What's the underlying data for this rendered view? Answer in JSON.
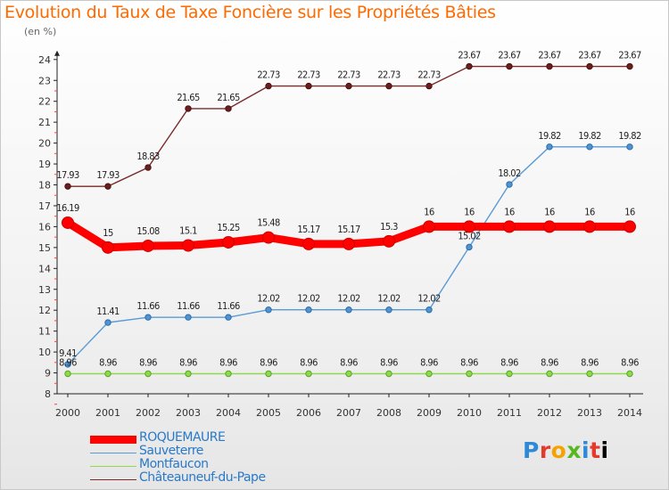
{
  "title": "Evolution du Taux de Taxe Foncière sur les Propriétés Bâties",
  "unit": "(en %)",
  "logo": [
    "P",
    "r",
    "o",
    "x",
    "i",
    "t",
    "i"
  ],
  "chart_data": {
    "type": "line",
    "x": [
      "2000",
      "2001",
      "2002",
      "2003",
      "2004",
      "2005",
      "2006",
      "2007",
      "2008",
      "2009",
      "2010",
      "2011",
      "2012",
      "2013",
      "2014"
    ],
    "yticks": [
      8,
      9,
      10,
      11,
      12,
      13,
      14,
      15,
      16,
      17,
      18,
      19,
      20,
      21,
      22,
      23,
      24
    ],
    "ylim": [
      8,
      24
    ],
    "series": [
      {
        "name": "ROQUEMAURE",
        "color": "#ff0000",
        "values": [
          16.19,
          15,
          15.08,
          15.1,
          15.25,
          15.48,
          15.17,
          15.17,
          15.3,
          16,
          16,
          16,
          16,
          16,
          16
        ],
        "labels": [
          "16.19",
          "15",
          "15.08",
          "15.1",
          "15.25",
          "15.48",
          "15.17",
          "15.17",
          "15.3",
          "16",
          "16",
          "16",
          "16",
          "16",
          "16"
        ]
      },
      {
        "name": "Sauveterre",
        "color": "#5b9bd5",
        "values": [
          9.41,
          11.41,
          11.66,
          11.66,
          11.66,
          12.02,
          12.02,
          12.02,
          12.02,
          12.02,
          15.02,
          18.02,
          19.82,
          19.82,
          19.82
        ],
        "labels": [
          "9.41",
          "11.41",
          "11.66",
          "11.66",
          "11.66",
          "12.02",
          "12.02",
          "12.02",
          "12.02",
          "12.02",
          "15.02",
          "18.02",
          "19.82",
          "19.82",
          "19.82"
        ]
      },
      {
        "name": "Montfaucon",
        "color": "#8ed94e",
        "values": [
          8.96,
          8.96,
          8.96,
          8.96,
          8.96,
          8.96,
          8.96,
          8.96,
          8.96,
          8.96,
          8.96,
          8.96,
          8.96,
          8.96,
          8.96
        ],
        "labels": [
          "8.96",
          "8.96",
          "8.96",
          "8.96",
          "8.96",
          "8.96",
          "8.96",
          "8.96",
          "8.96",
          "8.96",
          "8.96",
          "8.96",
          "8.96",
          "8.96",
          "8.96"
        ]
      },
      {
        "name": "Châteauneuf-du-Pape",
        "color": "#7b2a2a",
        "values": [
          17.93,
          17.93,
          18.83,
          21.65,
          21.65,
          22.73,
          22.73,
          22.73,
          22.73,
          22.73,
          23.67,
          23.67,
          23.67,
          23.67,
          23.67
        ],
        "labels": [
          "17.93",
          "17.93",
          "18.83",
          "21.65",
          "21.65",
          "22.73",
          "22.73",
          "22.73",
          "22.73",
          "22.73",
          "23.67",
          "23.67",
          "23.67",
          "23.67",
          "23.67"
        ]
      }
    ]
  }
}
